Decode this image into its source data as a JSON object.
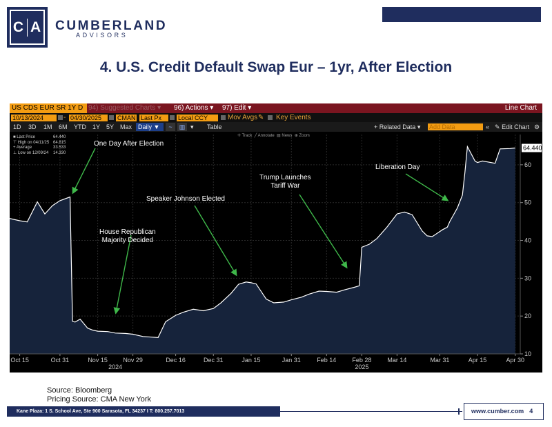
{
  "brand": {
    "logo_left": "C",
    "logo_right": "A",
    "name": "CUMBERLAND",
    "sub": "ADVISORS"
  },
  "slide_title": "4. U.S. Credit Default Swap Eur – 1yr, After Election",
  "terminal": {
    "ticker": "US CDS EUR SR 1Y D",
    "suggested": "94) Suggested Charts",
    "actions": "96) Actions",
    "edit": "97) Edit",
    "chart_type": "Line Chart",
    "start_date": "10/13/2024",
    "end_date": "04/30/2025",
    "source_code": "CMAN",
    "field": "Last Px",
    "currency": "Local CCY",
    "mov_avgs": "Mov Avgs",
    "key_events": "Key Events",
    "periods": [
      "1D",
      "3D",
      "1M",
      "6M",
      "YTD",
      "1Y",
      "5Y",
      "Max"
    ],
    "frequency": "Daily",
    "table_label": "Table",
    "related_data": "+ Related Data",
    "add_data": "Add Data",
    "edit_chart": "Edit Chart",
    "tools": [
      "Track",
      "Annotate",
      "News",
      "Zoom"
    ],
    "legend": [
      {
        "label": "Last Price",
        "value": "64.440"
      },
      {
        "label": "High on 04/11/25",
        "value": "64.815"
      },
      {
        "label": "Average",
        "value": "33.533"
      },
      {
        "label": "Low on 12/09/24",
        "value": "14.330"
      }
    ],
    "annotations": [
      {
        "text": "One Day After Election"
      },
      {
        "text": "House Republican\nMajority Decided"
      },
      {
        "text": "Speaker Johnson Elected"
      },
      {
        "text": "Trump Launches\nTariff War"
      },
      {
        "text": "Liberation Day"
      }
    ]
  },
  "chart_data": {
    "type": "area",
    "title": "",
    "xlabel": "",
    "ylabel": "",
    "ylim": [
      10,
      68
    ],
    "yticks": [
      10,
      20,
      30,
      40,
      50,
      60
    ],
    "last_value_label": "64.440",
    "xticks": [
      {
        "label": "Oct 15",
        "date": "2024-10-15"
      },
      {
        "label": "Oct 31",
        "date": "2024-10-31"
      },
      {
        "label": "Nov 15",
        "date": "2024-11-15"
      },
      {
        "label": "Nov 29",
        "date": "2024-11-29"
      },
      {
        "label": "Dec 16",
        "date": "2024-12-16"
      },
      {
        "label": "Dec 31",
        "date": "2024-12-31"
      },
      {
        "label": "Jan 15",
        "date": "2025-01-15"
      },
      {
        "label": "Jan 31",
        "date": "2025-01-31"
      },
      {
        "label": "Feb 14",
        "date": "2025-02-14"
      },
      {
        "label": "Feb 28",
        "date": "2025-02-28"
      },
      {
        "label": "Mar 14",
        "date": "2025-03-14"
      },
      {
        "label": "Mar 31",
        "date": "2025-03-31"
      },
      {
        "label": "Apr 15",
        "date": "2025-04-15"
      },
      {
        "label": "Apr 30",
        "date": "2025-04-30"
      }
    ],
    "year_labels": [
      {
        "label": "2024",
        "date": "2024-11-22"
      },
      {
        "label": "2025",
        "date": "2025-02-28"
      }
    ],
    "series": [
      {
        "color": "#ffffff",
        "fill": "#16233b",
        "x": [
          "2024-10-11",
          "2024-10-15",
          "2024-10-18",
          "2024-10-22",
          "2024-10-25",
          "2024-10-28",
          "2024-10-31",
          "2024-11-04",
          "2024-11-05",
          "2024-11-06",
          "2024-11-08",
          "2024-11-11",
          "2024-11-13",
          "2024-11-15",
          "2024-11-19",
          "2024-11-22",
          "2024-11-26",
          "2024-11-29",
          "2024-12-03",
          "2024-12-05",
          "2024-12-09",
          "2024-12-12",
          "2024-12-16",
          "2024-12-19",
          "2024-12-23",
          "2024-12-27",
          "2024-12-31",
          "2025-01-03",
          "2025-01-07",
          "2025-01-10",
          "2025-01-13",
          "2025-01-15",
          "2025-01-17",
          "2025-01-21",
          "2025-01-24",
          "2025-01-28",
          "2025-01-31",
          "2025-02-04",
          "2025-02-07",
          "2025-02-11",
          "2025-02-14",
          "2025-02-18",
          "2025-02-21",
          "2025-02-25",
          "2025-02-27",
          "2025-02-28",
          "2025-03-03",
          "2025-03-06",
          "2025-03-10",
          "2025-03-14",
          "2025-03-17",
          "2025-03-20",
          "2025-03-24",
          "2025-03-26",
          "2025-03-28",
          "2025-04-01",
          "2025-04-03",
          "2025-04-04",
          "2025-04-07",
          "2025-04-09",
          "2025-04-10",
          "2025-04-11",
          "2025-04-14",
          "2025-04-15",
          "2025-04-17",
          "2025-04-22",
          "2025-04-24",
          "2025-04-28",
          "2025-04-30"
        ],
        "y": [
          45.8,
          45.2,
          44.9,
          50.2,
          47.0,
          49.2,
          50.5,
          51.5,
          18.6,
          18.4,
          19.2,
          16.8,
          16.3,
          16.0,
          15.9,
          15.5,
          15.4,
          15.2,
          14.6,
          14.5,
          14.3,
          18.5,
          20.2,
          21.0,
          21.8,
          21.4,
          22.0,
          23.5,
          26.0,
          28.4,
          29.0,
          28.8,
          28.5,
          24.5,
          23.5,
          23.7,
          24.3,
          25.0,
          25.8,
          26.6,
          26.5,
          26.3,
          26.9,
          27.6,
          28.0,
          38.2,
          39.0,
          40.5,
          43.5,
          47.0,
          47.5,
          46.8,
          42.5,
          41.2,
          41.0,
          42.8,
          43.5,
          45.0,
          48.6,
          52.0,
          58.0,
          64.8,
          61.0,
          60.6,
          61.0,
          60.4,
          64.2,
          64.3,
          64.44
        ]
      }
    ]
  },
  "footer": {
    "source": "Source: Bloomberg",
    "pricing": "Pricing Source: CMA New York",
    "address": "Kane Plaza: 1 S. School Ave, Ste 900 Sarasota, FL 34237   I   T: 800.257.7013",
    "website": "www.cumber.com",
    "page": "4"
  }
}
